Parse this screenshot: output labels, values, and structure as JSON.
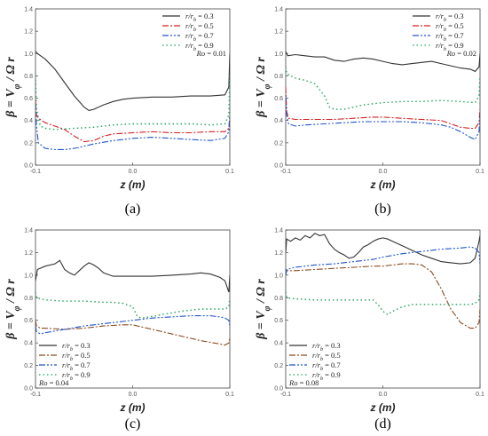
{
  "chart_data": [
    {
      "type": "line",
      "caption": "(a)",
      "xlabel": "z (m)",
      "ylabel": "β = V_φ / Ω r",
      "xlim": [
        -0.1,
        0.1
      ],
      "ylim": [
        0.0,
        1.4
      ],
      "xticks": [
        "-0.1",
        "0.0",
        "0.1"
      ],
      "yticks": [
        "0.0",
        "0.2",
        "0.4",
        "0.6",
        "0.8",
        "1.0",
        "1.2",
        "1.4"
      ],
      "legend_position": "top-right",
      "annotation": "Ro = 0.01",
      "series": [
        {
          "name": "r/r_b = 0.3",
          "color": "#333333",
          "x": [
            -0.1,
            -0.098,
            -0.09,
            -0.08,
            -0.07,
            -0.06,
            -0.05,
            -0.045,
            -0.04,
            -0.03,
            -0.02,
            -0.01,
            0.0,
            0.02,
            0.04,
            0.06,
            0.08,
            0.095,
            0.099,
            0.1
          ],
          "y": [
            1.02,
            1.0,
            0.95,
            0.86,
            0.74,
            0.62,
            0.52,
            0.49,
            0.5,
            0.54,
            0.57,
            0.59,
            0.6,
            0.61,
            0.61,
            0.62,
            0.62,
            0.63,
            0.7,
            1.0
          ]
        },
        {
          "name": "r/r_b = 0.5",
          "color": "#d62020",
          "x": [
            -0.1,
            -0.099,
            -0.097,
            -0.09,
            -0.08,
            -0.07,
            -0.06,
            -0.05,
            -0.04,
            -0.03,
            -0.02,
            0.0,
            0.02,
            0.04,
            0.06,
            0.08,
            0.095,
            0.099,
            0.1
          ],
          "y": [
            0.58,
            0.45,
            0.42,
            0.38,
            0.35,
            0.32,
            0.26,
            0.21,
            0.22,
            0.26,
            0.28,
            0.29,
            0.3,
            0.29,
            0.29,
            0.3,
            0.3,
            0.33,
            0.45
          ]
        },
        {
          "name": "r/r_b = 0.7",
          "color": "#2255cc",
          "x": [
            -0.1,
            -0.099,
            -0.097,
            -0.09,
            -0.08,
            -0.07,
            -0.06,
            -0.05,
            -0.04,
            -0.02,
            0.0,
            0.02,
            0.04,
            0.06,
            0.08,
            0.095,
            0.099,
            0.1
          ],
          "y": [
            0.55,
            0.35,
            0.2,
            0.15,
            0.14,
            0.14,
            0.15,
            0.17,
            0.19,
            0.22,
            0.24,
            0.25,
            0.24,
            0.23,
            0.22,
            0.24,
            0.3,
            0.45
          ]
        },
        {
          "name": "r/r_b = 0.9",
          "color": "#1ea35c",
          "x": [
            -0.1,
            -0.099,
            -0.095,
            -0.09,
            -0.08,
            -0.06,
            -0.04,
            -0.02,
            0.0,
            0.02,
            0.04,
            0.06,
            0.08,
            0.095,
            0.099,
            0.1
          ],
          "y": [
            0.8,
            0.5,
            0.35,
            0.33,
            0.32,
            0.33,
            0.34,
            0.36,
            0.37,
            0.37,
            0.37,
            0.37,
            0.36,
            0.37,
            0.45,
            0.8
          ]
        }
      ]
    },
    {
      "type": "line",
      "caption": "(b)",
      "xlabel": "z (m)",
      "ylabel": "β = V_φ / Ω r",
      "xlim": [
        -0.1,
        0.1
      ],
      "ylim": [
        0.0,
        1.4
      ],
      "xticks": [
        "-0.1",
        "0.0",
        "0.1"
      ],
      "yticks": [
        "0.0",
        "0.2",
        "0.4",
        "0.6",
        "0.8",
        "1.0",
        "1.2",
        "1.4"
      ],
      "legend_position": "top-right",
      "annotation": "Ro = 0.02",
      "series": [
        {
          "name": "r/r_b = 0.3",
          "color": "#333333",
          "x": [
            -0.1,
            -0.098,
            -0.09,
            -0.08,
            -0.07,
            -0.06,
            -0.05,
            -0.04,
            -0.03,
            -0.02,
            -0.01,
            0.0,
            0.01,
            0.02,
            0.03,
            0.04,
            0.05,
            0.06,
            0.07,
            0.08,
            0.09,
            0.095,
            0.099,
            0.1
          ],
          "y": [
            1.02,
            0.98,
            0.99,
            0.98,
            0.97,
            0.97,
            0.94,
            0.93,
            0.95,
            0.96,
            0.95,
            0.93,
            0.91,
            0.9,
            0.91,
            0.92,
            0.93,
            0.91,
            0.89,
            0.87,
            0.86,
            0.84,
            0.88,
            1.0
          ]
        },
        {
          "name": "r/r_b = 0.5",
          "color": "#d62020",
          "x": [
            -0.1,
            -0.099,
            -0.097,
            -0.09,
            -0.07,
            -0.05,
            -0.03,
            -0.01,
            0.0,
            0.02,
            0.04,
            0.06,
            0.07,
            0.08,
            0.09,
            0.095,
            0.099,
            0.1
          ],
          "y": [
            0.7,
            0.48,
            0.42,
            0.41,
            0.41,
            0.41,
            0.42,
            0.43,
            0.43,
            0.42,
            0.41,
            0.4,
            0.37,
            0.34,
            0.33,
            0.33,
            0.38,
            0.5
          ]
        },
        {
          "name": "r/r_b = 0.7",
          "color": "#2255cc",
          "x": [
            -0.1,
            -0.099,
            -0.097,
            -0.09,
            -0.08,
            -0.06,
            -0.04,
            -0.02,
            0.0,
            0.02,
            0.04,
            0.06,
            0.07,
            0.08,
            0.09,
            0.095,
            0.099,
            0.1
          ],
          "y": [
            0.62,
            0.45,
            0.37,
            0.35,
            0.36,
            0.37,
            0.38,
            0.39,
            0.39,
            0.39,
            0.38,
            0.36,
            0.34,
            0.3,
            0.25,
            0.23,
            0.3,
            0.45
          ]
        },
        {
          "name": "r/r_b = 0.9",
          "color": "#1ea35c",
          "x": [
            -0.1,
            -0.099,
            -0.09,
            -0.08,
            -0.07,
            -0.06,
            -0.055,
            -0.05,
            -0.04,
            -0.03,
            -0.02,
            0.0,
            0.02,
            0.04,
            0.06,
            0.08,
            0.095,
            0.099,
            0.1
          ],
          "y": [
            0.88,
            0.82,
            0.78,
            0.76,
            0.73,
            0.62,
            0.52,
            0.5,
            0.5,
            0.52,
            0.54,
            0.56,
            0.57,
            0.57,
            0.58,
            0.57,
            0.56,
            0.62,
            0.8
          ]
        }
      ]
    },
    {
      "type": "line",
      "caption": "(c)",
      "xlabel": "z (m)",
      "ylabel": "β = V_φ / Ω r",
      "xlim": [
        -0.1,
        0.1
      ],
      "ylim": [
        0.0,
        1.4
      ],
      "xticks": [
        "-0.1",
        "0.0",
        "0.1"
      ],
      "yticks": [
        "0.0",
        "0.2",
        "0.4",
        "0.6",
        "0.8",
        "1.0",
        "1.2",
        "1.4"
      ],
      "legend_position": "bottom-left",
      "annotation": "Ro = 0.04",
      "series": [
        {
          "name": "r/r_b = 0.3",
          "color": "#333333",
          "x": [
            -0.1,
            -0.098,
            -0.09,
            -0.08,
            -0.075,
            -0.07,
            -0.065,
            -0.06,
            -0.055,
            -0.05,
            -0.045,
            -0.04,
            -0.035,
            -0.03,
            -0.02,
            -0.01,
            0.0,
            0.02,
            0.04,
            0.06,
            0.07,
            0.08,
            0.09,
            0.095,
            0.099,
            0.1
          ],
          "y": [
            0.95,
            1.05,
            1.08,
            1.1,
            1.13,
            1.05,
            1.02,
            1.0,
            1.04,
            1.08,
            1.11,
            1.09,
            1.06,
            1.02,
            0.99,
            0.99,
            0.99,
            0.99,
            1.0,
            1.01,
            1.02,
            1.01,
            0.98,
            0.95,
            0.85,
            1.0
          ]
        },
        {
          "name": "r/r_b = 0.5",
          "color": "#8a4a1e",
          "x": [
            -0.1,
            -0.099,
            -0.095,
            -0.09,
            -0.07,
            -0.05,
            -0.03,
            -0.01,
            0.0,
            0.01,
            0.03,
            0.05,
            0.07,
            0.09,
            0.095,
            0.099,
            0.1
          ],
          "y": [
            0.6,
            0.55,
            0.53,
            0.53,
            0.52,
            0.53,
            0.55,
            0.56,
            0.56,
            0.54,
            0.5,
            0.46,
            0.42,
            0.39,
            0.38,
            0.4,
            0.45
          ]
        },
        {
          "name": "r/r_b = 0.7",
          "color": "#2255cc",
          "x": [
            -0.1,
            -0.099,
            -0.095,
            -0.09,
            -0.07,
            -0.05,
            -0.03,
            -0.01,
            0.0,
            0.02,
            0.04,
            0.06,
            0.08,
            0.09,
            0.095,
            0.099,
            0.1
          ],
          "y": [
            0.55,
            0.5,
            0.48,
            0.49,
            0.52,
            0.55,
            0.57,
            0.59,
            0.6,
            0.62,
            0.63,
            0.64,
            0.64,
            0.63,
            0.62,
            0.6,
            0.55
          ]
        },
        {
          "name": "r/r_b = 0.9",
          "color": "#1ea35c",
          "x": [
            -0.1,
            -0.099,
            -0.09,
            -0.07,
            -0.05,
            -0.03,
            -0.02,
            -0.01,
            0.0,
            0.005,
            0.01,
            0.03,
            0.05,
            0.07,
            0.09,
            0.095,
            0.099,
            0.1
          ],
          "y": [
            0.85,
            0.8,
            0.78,
            0.77,
            0.77,
            0.76,
            0.76,
            0.75,
            0.72,
            0.63,
            0.62,
            0.65,
            0.68,
            0.7,
            0.7,
            0.7,
            0.72,
            0.8
          ]
        }
      ]
    },
    {
      "type": "line",
      "caption": "(d)",
      "xlabel": "z (m)",
      "ylabel": "β = V_φ / Ω r",
      "xlim": [
        -0.1,
        0.1
      ],
      "ylim": [
        0.0,
        1.4
      ],
      "xticks": [
        "-0.1",
        "0.0",
        "0.1"
      ],
      "yticks": [
        "0.0",
        "0.2",
        "0.4",
        "0.6",
        "0.8",
        "1.0",
        "1.2",
        "1.4"
      ],
      "legend_position": "bottom-left",
      "annotation": "Ro = 0.08",
      "series": [
        {
          "name": "r/r_b = 0.3",
          "color": "#333333",
          "x": [
            -0.1,
            -0.099,
            -0.095,
            -0.09,
            -0.085,
            -0.08,
            -0.075,
            -0.07,
            -0.065,
            -0.06,
            -0.055,
            -0.05,
            -0.045,
            -0.04,
            -0.035,
            -0.03,
            -0.025,
            -0.02,
            -0.015,
            -0.01,
            -0.005,
            0.0,
            0.005,
            0.01,
            0.02,
            0.03,
            0.04,
            0.05,
            0.06,
            0.07,
            0.08,
            0.09,
            0.095,
            0.099,
            0.1
          ],
          "y": [
            1.2,
            1.32,
            1.3,
            1.33,
            1.31,
            1.35,
            1.33,
            1.37,
            1.35,
            1.36,
            1.28,
            1.23,
            1.2,
            1.18,
            1.15,
            1.16,
            1.2,
            1.25,
            1.27,
            1.3,
            1.32,
            1.33,
            1.32,
            1.3,
            1.26,
            1.22,
            1.18,
            1.15,
            1.12,
            1.11,
            1.1,
            1.11,
            1.15,
            1.3,
            1.35
          ]
        },
        {
          "name": "r/r_b = 0.5",
          "color": "#8a4a1e",
          "x": [
            -0.1,
            -0.099,
            -0.09,
            -0.07,
            -0.05,
            -0.03,
            -0.01,
            0.0,
            0.01,
            0.02,
            0.03,
            0.04,
            0.05,
            0.06,
            0.07,
            0.08,
            0.09,
            0.095,
            0.099,
            0.1
          ],
          "y": [
            1.0,
            1.04,
            1.04,
            1.05,
            1.06,
            1.07,
            1.08,
            1.08,
            1.09,
            1.1,
            1.1,
            1.09,
            1.03,
            0.88,
            0.7,
            0.58,
            0.53,
            0.53,
            0.58,
            0.7
          ]
        },
        {
          "name": "r/r_b = 0.7",
          "color": "#2255cc",
          "x": [
            -0.1,
            -0.099,
            -0.09,
            -0.07,
            -0.05,
            -0.03,
            -0.01,
            0.0,
            0.02,
            0.04,
            0.06,
            0.08,
            0.09,
            0.095,
            0.099,
            0.1
          ],
          "y": [
            1.0,
            1.05,
            1.07,
            1.09,
            1.1,
            1.12,
            1.14,
            1.16,
            1.19,
            1.21,
            1.23,
            1.24,
            1.25,
            1.24,
            1.2,
            1.1
          ]
        },
        {
          "name": "r/r_b = 0.9",
          "color": "#1ea35c",
          "x": [
            -0.1,
            -0.099,
            -0.09,
            -0.07,
            -0.05,
            -0.03,
            -0.01,
            -0.005,
            0.0,
            0.005,
            0.01,
            0.02,
            0.03,
            0.05,
            0.07,
            0.09,
            0.095,
            0.099,
            0.1
          ],
          "y": [
            0.85,
            0.8,
            0.79,
            0.78,
            0.78,
            0.78,
            0.78,
            0.74,
            0.68,
            0.65,
            0.68,
            0.72,
            0.74,
            0.74,
            0.74,
            0.74,
            0.75,
            0.78,
            0.85
          ]
        }
      ]
    }
  ]
}
